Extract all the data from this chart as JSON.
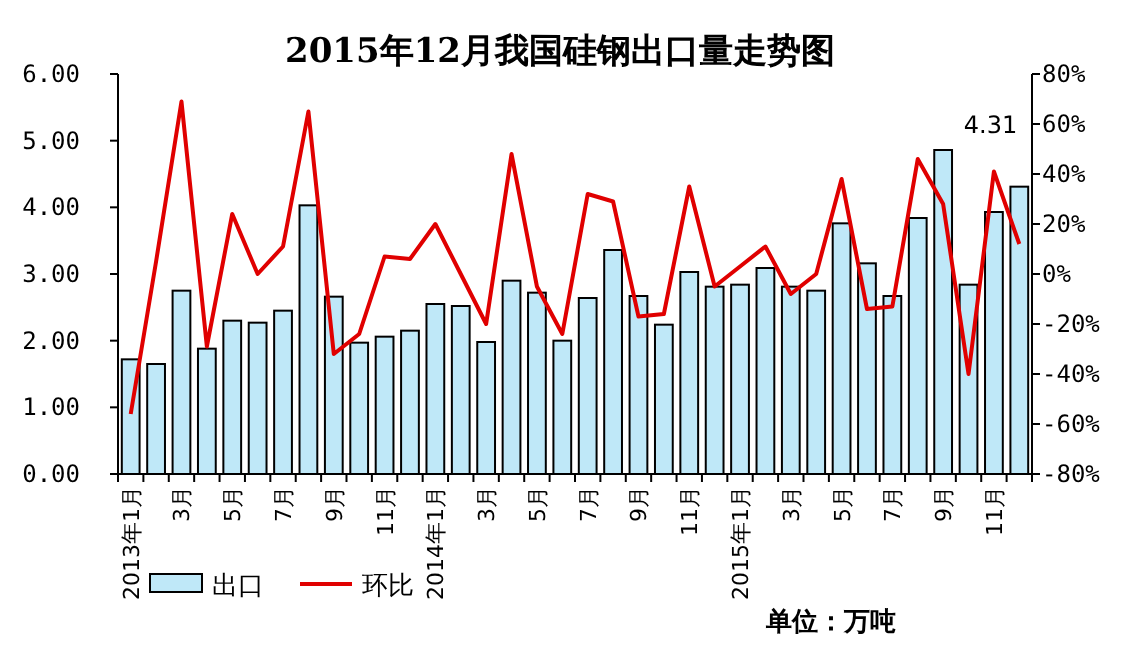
{
  "chart_data": {
    "type": "bar",
    "title": "2015年12月我国硅钢出口量走势图",
    "categories": [
      "2013年1月",
      null,
      "3月",
      null,
      "5月",
      null,
      "7月",
      null,
      "9月",
      null,
      "11月",
      null,
      "2014年1月",
      null,
      "3月",
      null,
      "5月",
      null,
      "7月",
      null,
      "9月",
      null,
      "11月",
      null,
      "2015年1月",
      null,
      "3月",
      null,
      "5月",
      null,
      "7月",
      null,
      "9月",
      null,
      "11月",
      null
    ],
    "series": [
      {
        "name": "出口",
        "color": "#bfe8f8",
        "values": [
          1.72,
          1.65,
          2.75,
          1.88,
          2.3,
          2.27,
          2.45,
          4.03,
          2.66,
          1.97,
          2.06,
          2.15,
          2.55,
          2.52,
          1.98,
          2.9,
          2.72,
          2.0,
          2.64,
          3.36,
          2.67,
          2.24,
          3.03,
          2.81,
          2.84,
          3.09,
          2.81,
          2.75,
          3.76,
          3.16,
          2.67,
          3.84,
          4.86,
          2.84,
          3.93,
          4.31
        ],
        "value_labels": [
          null,
          null,
          null,
          null,
          null,
          null,
          null,
          null,
          null,
          null,
          null,
          null,
          null,
          null,
          null,
          null,
          null,
          null,
          null,
          null,
          null,
          null,
          null,
          null,
          null,
          null,
          null,
          null,
          null,
          null,
          null,
          null,
          null,
          null,
          null,
          "4.31"
        ]
      },
      {
        "name": "环比",
        "type": "line",
        "axis": "y2",
        "color": "#e00000",
        "values": [
          -56,
          5,
          69,
          -29,
          24,
          0,
          11,
          65,
          -32,
          -24,
          7,
          6,
          20,
          0,
          -20,
          48,
          -5,
          -24,
          32,
          29,
          -17,
          -16,
          35,
          -5,
          3,
          11,
          -8,
          0,
          38,
          -14,
          -13,
          46,
          28,
          -40,
          41,
          12
        ]
      }
    ],
    "ylim": [
      0,
      6
    ],
    "yticks": [
      {
        "value": 0,
        "label": "0.00"
      },
      {
        "value": 1,
        "label": "1.00"
      },
      {
        "value": 2,
        "label": "2.00"
      },
      {
        "value": 3,
        "label": "3.00"
      },
      {
        "value": 4,
        "label": "4.00"
      },
      {
        "value": 5,
        "label": "5.00"
      },
      {
        "value": 6,
        "label": "6.00"
      }
    ],
    "y2lim": [
      -80,
      80
    ],
    "y2ticks": [
      {
        "value": -80,
        "label": "-80%"
      },
      {
        "value": -60,
        "label": "-60%"
      },
      {
        "value": -40,
        "label": "-40%"
      },
      {
        "value": -20,
        "label": "-20%"
      },
      {
        "value": 0,
        "label": "0%"
      },
      {
        "value": 20,
        "label": "20%"
      },
      {
        "value": 40,
        "label": "40%"
      },
      {
        "value": 60,
        "label": "60%"
      },
      {
        "value": 80,
        "label": "80%"
      }
    ],
    "legend": "bottom",
    "annotations": [
      "单位：万吨"
    ]
  }
}
